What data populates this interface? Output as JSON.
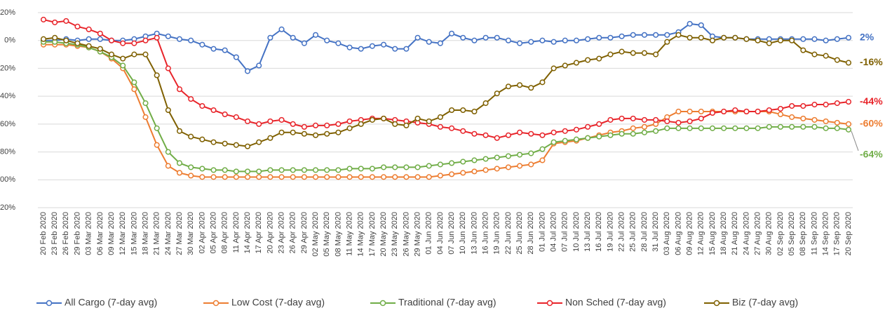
{
  "chart_data": {
    "type": "line",
    "categories": [
      "20 Feb 2020",
      "23 Feb 2020",
      "26 Feb 2020",
      "29 Feb 2020",
      "03 Mar 2020",
      "06 Mar 2020",
      "09 Mar 2020",
      "12 Mar 2020",
      "15 Mar 2020",
      "18 Mar 2020",
      "21 Mar 2020",
      "24 Mar 2020",
      "27 Mar 2020",
      "30 Mar 2020",
      "02 Apr 2020",
      "05 Apr 2020",
      "08 Apr 2020",
      "11 Apr 2020",
      "14 Apr 2020",
      "17 Apr 2020",
      "20 Apr 2020",
      "23 Apr 2020",
      "26 Apr 2020",
      "29 Apr 2020",
      "02 May 2020",
      "05 May 2020",
      "08 May 2020",
      "11 May 2020",
      "14 May 2020",
      "17 May 2020",
      "20 May 2020",
      "23 May 2020",
      "26 May 2020",
      "29 May 2020",
      "01 Jun 2020",
      "04 Jun 2020",
      "07 Jun 2020",
      "10 Jun 2020",
      "13 Jun 2020",
      "16 Jun 2020",
      "19 Jun 2020",
      "22 Jun 2020",
      "25 Jun 2020",
      "28 Jun 2020",
      "01 Jul 2020",
      "04 Jul 2020",
      "07 Jul 2020",
      "10 Jul 2020",
      "13 Jul 2020",
      "16 Jul 2020",
      "19 Jul 2020",
      "22 Jul 2020",
      "25 Jul 2020",
      "28 Jul 2020",
      "31 Jul 2020",
      "03 Aug 2020",
      "06 Aug 2020",
      "09 Aug 2020",
      "12 Aug 2020",
      "15 Aug 2020",
      "18 Aug 2020",
      "21 Aug 2020",
      "24 Aug 2020",
      "27 Aug 2020",
      "30 Aug 2020",
      "02 Sep 2020",
      "05 Sep 2020",
      "08 Sep 2020",
      "11 Sep 2020",
      "14 Sep 2020",
      "17 Sep 2020",
      "20 Sep 2020"
    ],
    "series": [
      {
        "name": "All Cargo (7-day avg)",
        "color": "#4472c4",
        "end_label": "2%",
        "values": [
          0,
          0,
          1,
          0,
          1,
          1,
          0,
          0,
          1,
          3,
          5,
          3,
          1,
          0,
          -3,
          -6,
          -7,
          -12,
          -22,
          -18,
          2,
          8,
          2,
          -2,
          4,
          0,
          -2,
          -5,
          -6,
          -4,
          -3,
          -6,
          -6,
          2,
          -1,
          -2,
          5,
          2,
          0,
          2,
          2,
          0,
          -2,
          -1,
          0,
          -1,
          0,
          0,
          1,
          2,
          2,
          3,
          4,
          4,
          4,
          4,
          6,
          12,
          11,
          3,
          2,
          2,
          1,
          1,
          1,
          1,
          1,
          1,
          1,
          0,
          1,
          2
        ]
      },
      {
        "name": "Low Cost (7-day avg)",
        "color": "#ed7d31",
        "end_label": "-60%",
        "values": [
          -3,
          -3,
          -3,
          -4,
          -5,
          -8,
          -13,
          -20,
          -35,
          -55,
          -75,
          -90,
          -95,
          -97,
          -98,
          -98,
          -98,
          -98,
          -98,
          -98,
          -98,
          -98,
          -98,
          -98,
          -98,
          -98,
          -98,
          -98,
          -98,
          -98,
          -98,
          -98,
          -98,
          -98,
          -98,
          -97,
          -96,
          -95,
          -94,
          -93,
          -92,
          -91,
          -90,
          -89,
          -86,
          -74,
          -73,
          -72,
          -70,
          -68,
          -66,
          -65,
          -63,
          -62,
          -60,
          -55,
          -51,
          -51,
          -51,
          -51,
          -51,
          -51,
          -51,
          -51,
          -51,
          -53,
          -55,
          -56,
          -57,
          -58,
          -59,
          -60
        ]
      },
      {
        "name": "Traditional (7-day avg)",
        "color": "#70ad47",
        "end_label": "-64%",
        "values": [
          -1,
          -1,
          -2,
          -3,
          -5,
          -8,
          -12,
          -18,
          -30,
          -45,
          -63,
          -80,
          -88,
          -91,
          -92,
          -93,
          -93,
          -94,
          -94,
          -94,
          -93,
          -93,
          -93,
          -93,
          -93,
          -93,
          -93,
          -92,
          -92,
          -92,
          -91,
          -91,
          -91,
          -91,
          -90,
          -89,
          -88,
          -87,
          -86,
          -85,
          -84,
          -83,
          -82,
          -81,
          -78,
          -73,
          -72,
          -71,
          -70,
          -69,
          -68,
          -67,
          -67,
          -66,
          -65,
          -63,
          -63,
          -63,
          -63,
          -63,
          -63,
          -63,
          -63,
          -63,
          -62,
          -62,
          -62,
          -62,
          -62,
          -63,
          -63,
          -64
        ]
      },
      {
        "name": "Non Sched (7-day avg)",
        "color": "#e8242a",
        "end_label": "-44%",
        "values": [
          15,
          13,
          14,
          10,
          8,
          5,
          0,
          -2,
          -2,
          0,
          2,
          -20,
          -35,
          -42,
          -47,
          -50,
          -53,
          -55,
          -58,
          -60,
          -58,
          -57,
          -60,
          -62,
          -61,
          -61,
          -60,
          -58,
          -57,
          -56,
          -56,
          -57,
          -58,
          -59,
          -60,
          -62,
          -63,
          -65,
          -67,
          -68,
          -70,
          -68,
          -66,
          -67,
          -68,
          -66,
          -65,
          -64,
          -62,
          -60,
          -57,
          -56,
          -56,
          -57,
          -57,
          -58,
          -59,
          -58,
          -56,
          -52,
          -51,
          -50,
          -51,
          -51,
          -50,
          -49,
          -47,
          -47,
          -46,
          -46,
          -45,
          -44
        ]
      },
      {
        "name": "Biz (7-day avg)",
        "color": "#7f6000",
        "end_label": "-16%",
        "values": [
          1,
          2,
          0,
          -2,
          -4,
          -6,
          -10,
          -13,
          -10,
          -10,
          -25,
          -50,
          -65,
          -69,
          -71,
          -73,
          -74,
          -75,
          -76,
          -73,
          -70,
          -66,
          -66,
          -67,
          -68,
          -67,
          -66,
          -63,
          -60,
          -57,
          -56,
          -60,
          -61,
          -56,
          -58,
          -55,
          -50,
          -50,
          -51,
          -45,
          -38,
          -33,
          -32,
          -34,
          -30,
          -20,
          -18,
          -16,
          -14,
          -13,
          -10,
          -8,
          -9,
          -9,
          -10,
          -1,
          4,
          2,
          2,
          0,
          2,
          2,
          1,
          0,
          -2,
          0,
          0,
          -7,
          -10,
          -11,
          -14,
          -16
        ]
      }
    ],
    "ylim": [
      -120,
      20
    ],
    "yticks": [
      {
        "value": -120,
        "label": "-120%"
      },
      {
        "value": -100,
        "label": "-100%"
      },
      {
        "value": -80,
        "label": "-80%"
      },
      {
        "value": -60,
        "label": "-60%"
      },
      {
        "value": -40,
        "label": "-40%"
      },
      {
        "value": -20,
        "label": "-20%"
      },
      {
        "value": 0,
        "label": "0%"
      },
      {
        "value": 20,
        "label": "20%"
      }
    ],
    "grid": true,
    "legend": "bottom"
  }
}
